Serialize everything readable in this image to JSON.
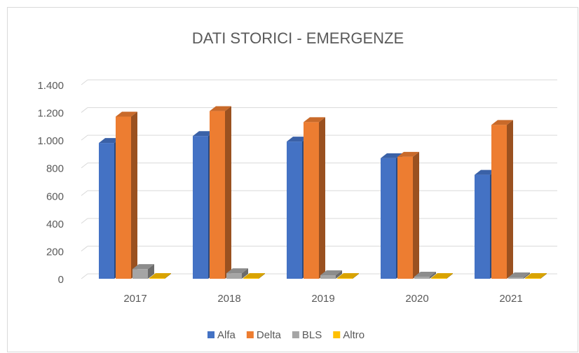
{
  "chart_data": {
    "type": "bar3d",
    "title": "DATI STORICI - EMERGENZE",
    "categories": [
      "2017",
      "2018",
      "2019",
      "2020",
      "2021"
    ],
    "series": [
      {
        "name": "Alfa",
        "color": "#4472c4",
        "values": [
          980,
          1030,
          990,
          870,
          750
        ]
      },
      {
        "name": "Delta",
        "color": "#ed7d31",
        "values": [
          1170,
          1210,
          1130,
          880,
          1110
        ]
      },
      {
        "name": "BLS",
        "color": "#a5a5a5",
        "values": [
          70,
          40,
          25,
          15,
          10
        ]
      },
      {
        "name": "Altro",
        "color": "#ffc000",
        "values": [
          5,
          5,
          5,
          5,
          5
        ]
      }
    ],
    "ylim": [
      0,
      1400
    ],
    "yticks": [
      0,
      200,
      400,
      600,
      800,
      {
        "value": 1000,
        "label": "1.000"
      },
      {
        "value": 1200,
        "label": "1.200"
      },
      {
        "value": 1400,
        "label": "1.400"
      }
    ],
    "grid": true,
    "legend": "bottom"
  }
}
